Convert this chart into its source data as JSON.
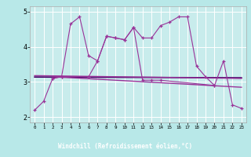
{
  "xlabel": "Windchill (Refroidissement éolien,°C)",
  "bg_color": "#b8e8e8",
  "plot_bg_color": "#c8ecec",
  "line_color": "#993399",
  "xlabel_bg": "#6633aa",
  "xlabel_fg": "#ffffff",
  "grid_color": "#ffffff",
  "x_data": [
    0,
    1,
    2,
    3,
    4,
    5,
    6,
    7,
    8,
    9,
    10,
    11,
    12,
    13,
    14,
    15,
    16,
    17,
    18,
    19,
    20,
    21,
    22,
    23
  ],
  "line1_y": [
    2.2,
    2.45,
    3.1,
    3.15,
    4.65,
    4.85,
    3.75,
    3.6,
    4.3,
    4.25,
    4.2,
    4.55,
    4.25,
    4.25,
    4.6,
    4.7,
    4.85,
    4.85,
    3.45,
    3.15,
    2.9,
    3.6,
    2.35,
    2.25
  ],
  "line2_y": [
    null,
    null,
    3.1,
    3.15,
    null,
    null,
    3.15,
    3.6,
    4.3,
    4.25,
    4.2,
    4.55,
    3.05,
    3.05,
    3.05,
    null,
    null,
    null,
    null,
    null,
    2.9,
    null,
    null,
    null
  ],
  "trend1_y_start": 3.18,
  "trend1_y_end": 3.1,
  "trend2_y_start": 3.15,
  "trend2_y_end": 2.85,
  "trend3_y_start": 3.14,
  "trend3_y_end": 3.12,
  "ylim": [
    1.85,
    5.15
  ],
  "xlim": [
    -0.5,
    23.5
  ],
  "yticks": [
    2,
    3,
    4,
    5
  ]
}
